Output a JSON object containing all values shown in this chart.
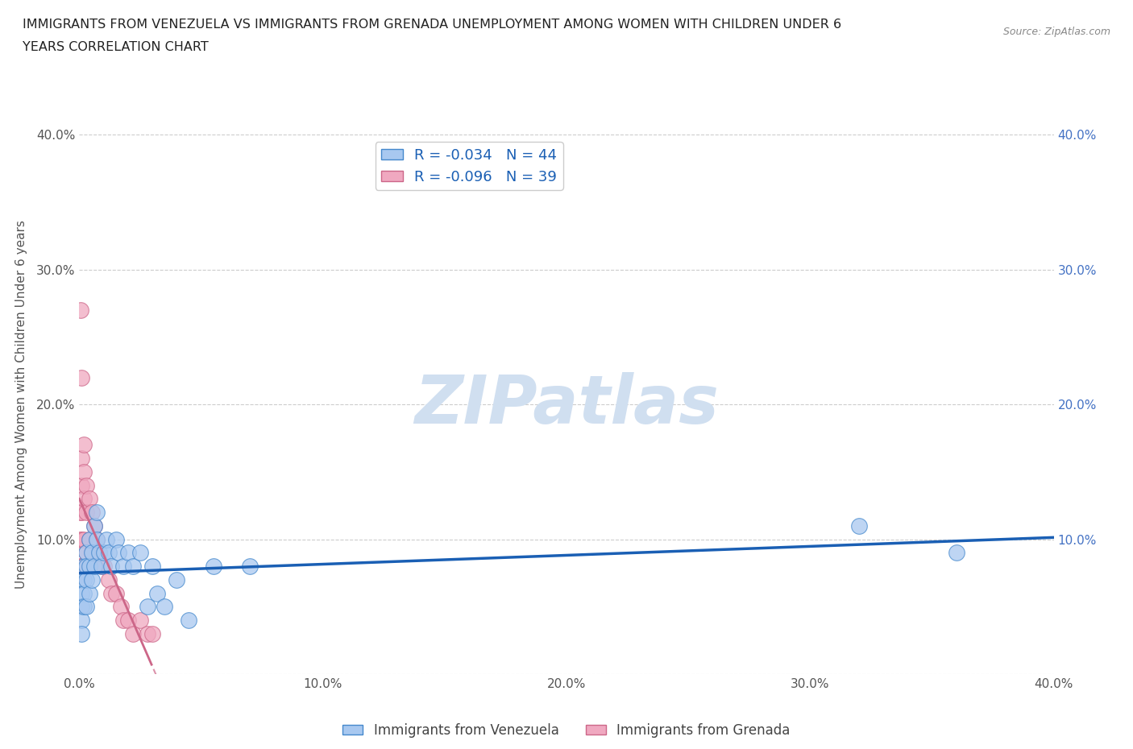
{
  "title_line1": "IMMIGRANTS FROM VENEZUELA VS IMMIGRANTS FROM GRENADA UNEMPLOYMENT AMONG WOMEN WITH CHILDREN UNDER 6",
  "title_line2": "YEARS CORRELATION CHART",
  "source": "Source: ZipAtlas.com",
  "ylabel": "Unemployment Among Women with Children Under 6 years",
  "xlim": [
    0.0,
    0.4
  ],
  "ylim": [
    0.0,
    0.4
  ],
  "xticks": [
    0.0,
    0.1,
    0.2,
    0.3,
    0.4
  ],
  "yticks": [
    0.0,
    0.1,
    0.2,
    0.3,
    0.4
  ],
  "venezuela_color": "#a8c8f0",
  "grenada_color": "#f0a8c0",
  "venezuela_edge_color": "#4488cc",
  "grenada_edge_color": "#cc6688",
  "venezuela_line_color": "#1a5fb4",
  "grenada_line_color": "#cc6688",
  "venezuela_R": -0.034,
  "venezuela_N": 44,
  "grenada_R": -0.096,
  "grenada_N": 39,
  "watermark": "ZIPatlas",
  "watermark_color": "#d0dff0",
  "venezuela_x": [
    0.001,
    0.001,
    0.001,
    0.001,
    0.001,
    0.002,
    0.002,
    0.002,
    0.002,
    0.003,
    0.003,
    0.003,
    0.003,
    0.004,
    0.004,
    0.004,
    0.005,
    0.005,
    0.006,
    0.006,
    0.007,
    0.007,
    0.008,
    0.009,
    0.01,
    0.011,
    0.012,
    0.013,
    0.015,
    0.016,
    0.018,
    0.02,
    0.022,
    0.025,
    0.028,
    0.03,
    0.032,
    0.035,
    0.04,
    0.045,
    0.055,
    0.07,
    0.32,
    0.36
  ],
  "venezuela_y": [
    0.07,
    0.06,
    0.05,
    0.04,
    0.03,
    0.08,
    0.07,
    0.06,
    0.05,
    0.09,
    0.08,
    0.07,
    0.05,
    0.1,
    0.08,
    0.06,
    0.09,
    0.07,
    0.11,
    0.08,
    0.12,
    0.1,
    0.09,
    0.08,
    0.09,
    0.1,
    0.09,
    0.08,
    0.1,
    0.09,
    0.08,
    0.09,
    0.08,
    0.09,
    0.05,
    0.08,
    0.06,
    0.05,
    0.07,
    0.04,
    0.08,
    0.08,
    0.11,
    0.09
  ],
  "grenada_x": [
    0.0005,
    0.0005,
    0.0005,
    0.0005,
    0.0005,
    0.001,
    0.001,
    0.001,
    0.001,
    0.001,
    0.001,
    0.002,
    0.002,
    0.002,
    0.002,
    0.002,
    0.003,
    0.003,
    0.003,
    0.004,
    0.004,
    0.004,
    0.005,
    0.005,
    0.006,
    0.007,
    0.008,
    0.009,
    0.01,
    0.012,
    0.013,
    0.015,
    0.017,
    0.018,
    0.02,
    0.022,
    0.025,
    0.028,
    0.03
  ],
  "grenada_y": [
    0.27,
    0.12,
    0.1,
    0.08,
    0.07,
    0.22,
    0.16,
    0.14,
    0.12,
    0.1,
    0.08,
    0.17,
    0.15,
    0.13,
    0.1,
    0.08,
    0.14,
    0.12,
    0.09,
    0.13,
    0.1,
    0.08,
    0.12,
    0.09,
    0.11,
    0.1,
    0.09,
    0.08,
    0.08,
    0.07,
    0.06,
    0.06,
    0.05,
    0.04,
    0.04,
    0.03,
    0.04,
    0.03,
    0.03
  ]
}
